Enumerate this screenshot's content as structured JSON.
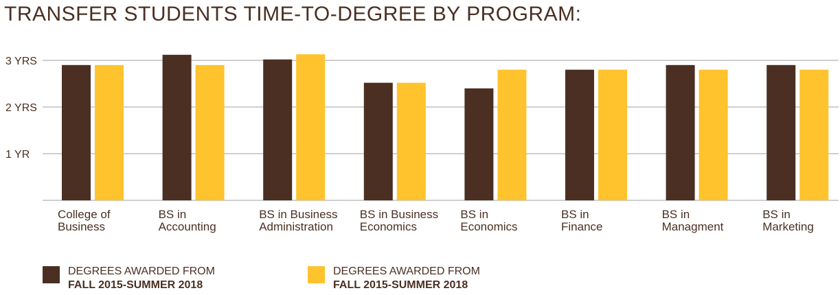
{
  "title": "TRANSFER STUDENTS TIME-TO-DEGREE BY PROGRAM:",
  "colors": {
    "series1": "#4a2f22",
    "series2": "#fec32d",
    "grid": "#cfcfcf",
    "text": "#4a2f22"
  },
  "legend": [
    {
      "line1": "DEGREES AWARDED FROM",
      "line2": "FALL 2015-SUMMER 2018"
    },
    {
      "line1": "DEGREES AWARDED FROM",
      "line2": "FALL 2015-SUMMER 2018"
    }
  ],
  "chart_data": {
    "type": "bar",
    "title": "TRANSFER STUDENTS TIME-TO-DEGREE BY PROGRAM:",
    "xlabel": "",
    "ylabel": "",
    "ylim": [
      0,
      3.2
    ],
    "grid": true,
    "legend_position": "bottom-left",
    "yticks": [
      {
        "value": 1,
        "label": "1 YR"
      },
      {
        "value": 2,
        "label": "2 YRS"
      },
      {
        "value": 3,
        "label": "3 YRS"
      }
    ],
    "categories": [
      [
        "College of",
        "Business"
      ],
      [
        "BS in",
        "Accounting"
      ],
      [
        "BS in Business",
        "Administration"
      ],
      [
        "BS in Business",
        "Economics"
      ],
      [
        "BS in",
        "Economics"
      ],
      [
        "BS in",
        "Finance"
      ],
      [
        "BS in",
        "Managment"
      ],
      [
        "BS in",
        "Marketing"
      ]
    ],
    "series": [
      {
        "values": [
          2.9,
          3.12,
          3.02,
          2.52,
          2.4,
          2.8,
          2.9,
          2.9
        ]
      },
      {
        "values": [
          2.9,
          2.9,
          3.13,
          2.52,
          2.8,
          2.8,
          2.8,
          2.8
        ]
      }
    ]
  }
}
